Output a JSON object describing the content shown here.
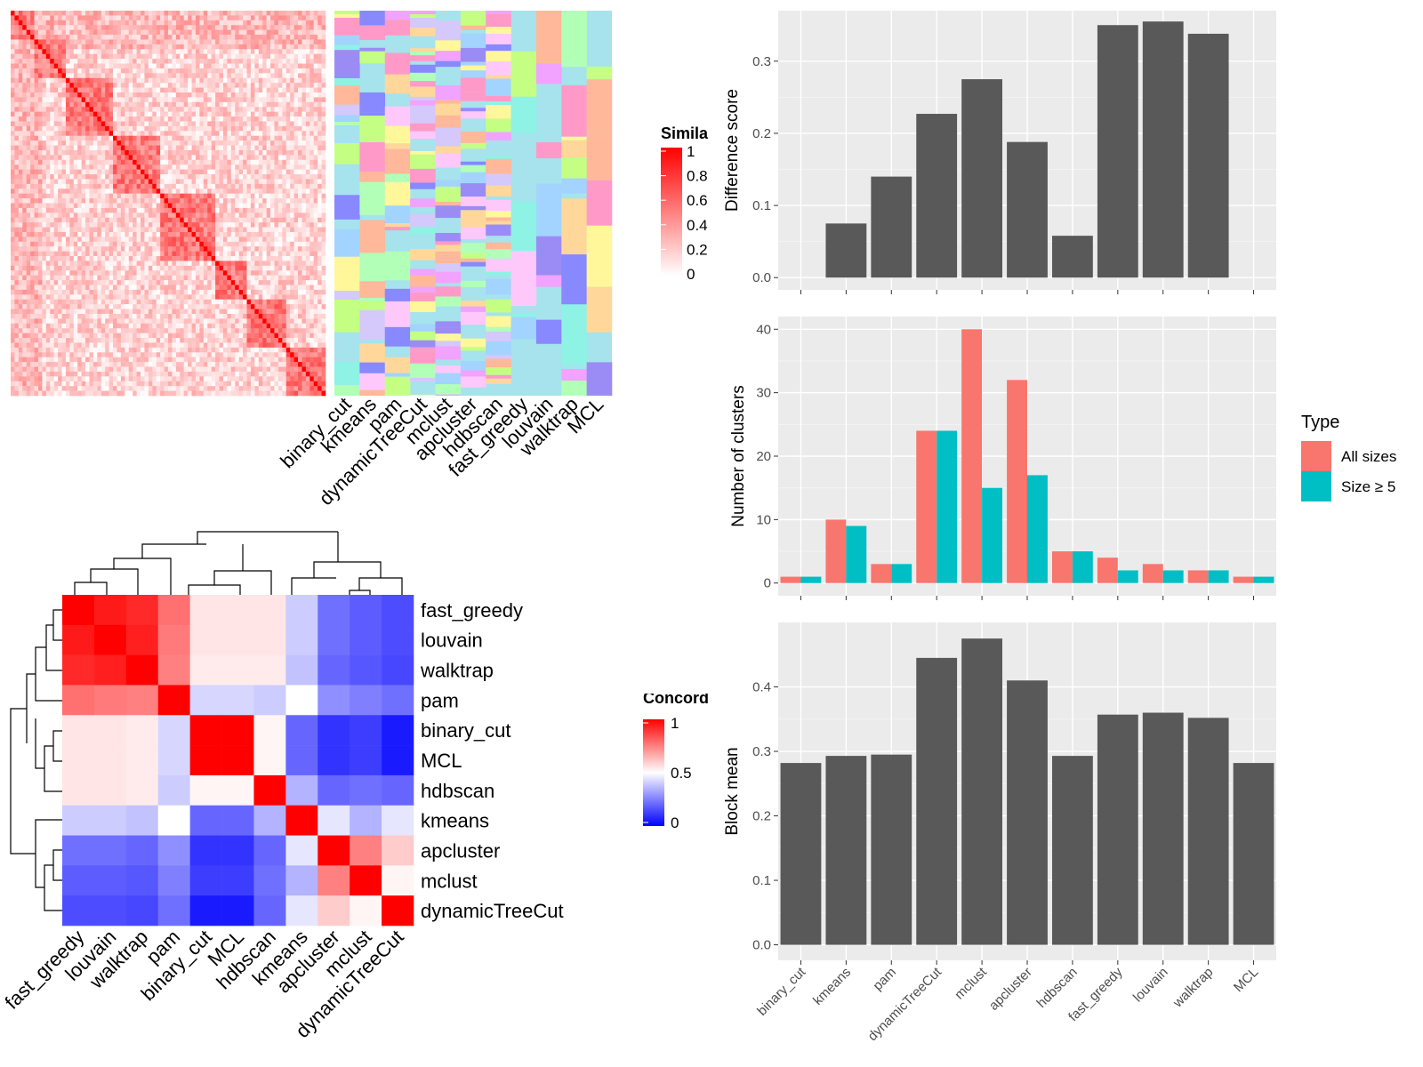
{
  "methods": [
    "binary_cut",
    "kmeans",
    "pam",
    "dynamicTreeCut",
    "mclust",
    "apcluster",
    "hdbscan",
    "fast_greedy",
    "louvain",
    "walktrap",
    "MCL"
  ],
  "colors": {
    "bar_dark": "#595959",
    "panel_bg": "#ebebeb",
    "grid": "#ffffff",
    "all_sizes": "#f8766d",
    "size_ge5": "#00bfc4",
    "sim_high": "#ff0000",
    "sim_low": "#ffffff",
    "conc_high": "#ff0000",
    "conc_mid": "#ffffff",
    "conc_low": "#0000ff",
    "class_bg": "#a6e3ec"
  },
  "similarity_heatmap": {
    "legend_title": "Simila",
    "legend_ticks": [
      "1",
      "0.8",
      "0.6",
      "0.4",
      "0.2",
      "0"
    ]
  },
  "class_panel": {
    "columns": [
      "binary_cut",
      "kmeans",
      "pam",
      "dynamicTreeCut",
      "mclust",
      "apcluster",
      "hdbscan",
      "fast_greedy",
      "louvain",
      "walktrap",
      "MCL"
    ]
  },
  "concordance_heatmap": {
    "legend_title": "Concord",
    "legend_ticks": [
      "1",
      "0.5",
      "0"
    ],
    "rows": [
      "fast_greedy",
      "louvain",
      "walktrap",
      "pam",
      "binary_cut",
      "MCL",
      "hdbscan",
      "kmeans",
      "apcluster",
      "mclust",
      "dynamicTreeCut"
    ],
    "columns": [
      "fast_greedy",
      "louvain",
      "walktrap",
      "pam",
      "binary_cut",
      "MCL",
      "hdbscan",
      "kmeans",
      "apcluster",
      "mclust",
      "dynamicTreeCut"
    ]
  },
  "chart_data": [
    {
      "type": "bar",
      "categories": [
        "binary_cut",
        "kmeans",
        "pam",
        "dynamicTreeCut",
        "mclust",
        "apcluster",
        "hdbscan",
        "fast_greedy",
        "louvain",
        "walktrap",
        "MCL"
      ],
      "values": [
        0,
        0.075,
        0.14,
        0.227,
        0.275,
        0.188,
        0.058,
        0.35,
        0.355,
        0.338,
        0
      ],
      "ylabel": "Difference score",
      "yticks": [
        "0.0",
        "0.1",
        "0.2",
        "0.3"
      ],
      "ylim": [
        -0.017,
        0.37
      ]
    },
    {
      "type": "bar",
      "categories": [
        "binary_cut",
        "kmeans",
        "pam",
        "dynamicTreeCut",
        "mclust",
        "apcluster",
        "hdbscan",
        "fast_greedy",
        "louvain",
        "walktrap",
        "MCL"
      ],
      "series": [
        {
          "name": "All sizes",
          "values": [
            1,
            10,
            3,
            24,
            40,
            32,
            5,
            4,
            3,
            2,
            1
          ]
        },
        {
          "name": "Size ≥ 5",
          "values": [
            1,
            9,
            3,
            24,
            15,
            17,
            5,
            2,
            2,
            2,
            1
          ]
        }
      ],
      "ylabel": "Number of clusters",
      "yticks": [
        "0",
        "10",
        "20",
        "30",
        "40"
      ],
      "ylim": [
        -2,
        42
      ],
      "legend_title": "Type",
      "legend_position": "right"
    },
    {
      "type": "bar",
      "categories": [
        "binary_cut",
        "kmeans",
        "pam",
        "dynamicTreeCut",
        "mclust",
        "apcluster",
        "hdbscan",
        "fast_greedy",
        "louvain",
        "walktrap",
        "MCL"
      ],
      "values": [
        0.282,
        0.293,
        0.295,
        0.445,
        0.475,
        0.41,
        0.293,
        0.357,
        0.36,
        0.352,
        0.282
      ],
      "ylabel": "Block mean",
      "yticks": [
        "0.0",
        "0.1",
        "0.2",
        "0.3",
        "0.4"
      ],
      "ylim": [
        -0.024,
        0.5
      ]
    },
    {
      "type": "heatmap",
      "rows": [
        "fast_greedy",
        "louvain",
        "walktrap",
        "pam",
        "binary_cut",
        "MCL",
        "hdbscan",
        "kmeans",
        "apcluster",
        "mclust",
        "dynamicTreeCut"
      ],
      "columns": [
        "fast_greedy",
        "louvain",
        "walktrap",
        "pam",
        "binary_cut",
        "MCL",
        "hdbscan",
        "kmeans",
        "apcluster",
        "mclust",
        "dynamicTreeCut"
      ],
      "values": [
        [
          1.0,
          0.95,
          0.92,
          0.78,
          0.55,
          0.55,
          0.55,
          0.4,
          0.22,
          0.18,
          0.15
        ],
        [
          0.95,
          1.0,
          0.94,
          0.76,
          0.55,
          0.55,
          0.55,
          0.4,
          0.22,
          0.18,
          0.15
        ],
        [
          0.92,
          0.94,
          1.0,
          0.75,
          0.54,
          0.54,
          0.54,
          0.38,
          0.2,
          0.17,
          0.14
        ],
        [
          0.78,
          0.76,
          0.75,
          1.0,
          0.42,
          0.42,
          0.4,
          0.5,
          0.28,
          0.25,
          0.22
        ],
        [
          0.55,
          0.55,
          0.54,
          0.42,
          1.0,
          1.0,
          0.52,
          0.2,
          0.1,
          0.12,
          0.05
        ],
        [
          0.55,
          0.55,
          0.54,
          0.42,
          1.0,
          1.0,
          0.52,
          0.2,
          0.1,
          0.12,
          0.05
        ],
        [
          0.55,
          0.55,
          0.54,
          0.4,
          0.52,
          0.52,
          1.0,
          0.35,
          0.2,
          0.22,
          0.2
        ],
        [
          0.4,
          0.4,
          0.38,
          0.5,
          0.2,
          0.2,
          0.35,
          1.0,
          0.45,
          0.35,
          0.45
        ],
        [
          0.22,
          0.22,
          0.2,
          0.28,
          0.1,
          0.1,
          0.2,
          0.45,
          1.0,
          0.75,
          0.6
        ],
        [
          0.18,
          0.18,
          0.17,
          0.25,
          0.12,
          0.12,
          0.22,
          0.35,
          0.75,
          1.0,
          0.52
        ],
        [
          0.15,
          0.15,
          0.14,
          0.22,
          0.05,
          0.05,
          0.2,
          0.45,
          0.6,
          0.52,
          1.0
        ]
      ],
      "legend_title": "Concord",
      "legend_position": "right"
    }
  ]
}
